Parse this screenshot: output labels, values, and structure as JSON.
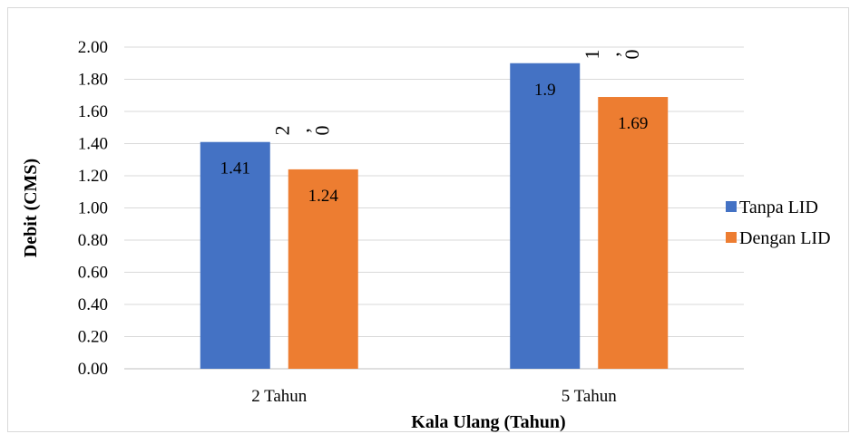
{
  "chart_data": {
    "type": "bar",
    "title": "",
    "xlabel": "Kala Ulang (Tahun)",
    "ylabel": "Debit (CMS)",
    "categories": [
      "2 Tahun",
      "5 Tahun"
    ],
    "series": [
      {
        "name": "Tanpa LID",
        "values": [
          1.41,
          1.9
        ],
        "labels": [
          "1.41",
          "1.9"
        ],
        "color": "#4472c4"
      },
      {
        "name": "Dengan LID",
        "values": [
          1.24,
          1.69
        ],
        "labels": [
          "1.24",
          "1.69"
        ],
        "color": "#ed7d31"
      }
    ],
    "ylim": [
      0,
      2.0
    ],
    "yticks": [
      "0.00",
      "0.20",
      "0.40",
      "0.60",
      "0.80",
      "1.00",
      "1.20",
      "1.40",
      "1.60",
      "1.80",
      "2.00"
    ],
    "grid": true,
    "legend_position": "right",
    "annotations": [
      {
        "category": "2 Tahun",
        "text": [
          "2",
          ",",
          "0"
        ]
      },
      {
        "category": "5 Tahun",
        "text": [
          "1",
          ",",
          "0"
        ]
      }
    ]
  }
}
